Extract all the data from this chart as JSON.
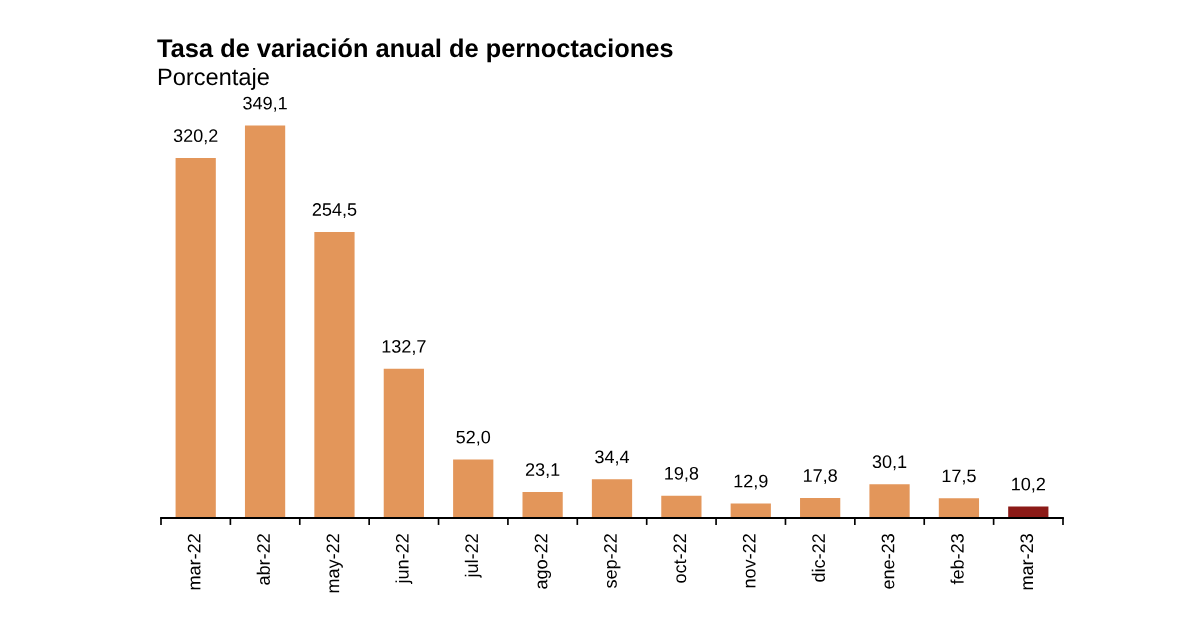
{
  "chart_data": {
    "type": "bar",
    "title": "Tasa de variación anual de pernoctaciones",
    "subtitle": "Porcentaje",
    "categories": [
      "mar-22",
      "abr-22",
      "may-22",
      "jun-22",
      "jul-22",
      "ago-22",
      "sep-22",
      "oct-22",
      "nov-22",
      "dic-22",
      "ene-23",
      "feb-23",
      "mar-23"
    ],
    "values": [
      320.2,
      349.1,
      254.5,
      132.7,
      52.0,
      23.1,
      34.4,
      19.8,
      12.9,
      17.8,
      30.1,
      17.5,
      10.2
    ],
    "value_labels": [
      "320,2",
      "349,1",
      "254,5",
      "132,7",
      "52,0",
      "23,1",
      "34,4",
      "19,8",
      "12,9",
      "17,8",
      "30,1",
      "17,5",
      "10,2"
    ],
    "colors": [
      "#e3965a",
      "#e3965a",
      "#e3965a",
      "#e3965a",
      "#e3965a",
      "#e3965a",
      "#e3965a",
      "#e3965a",
      "#e3965a",
      "#e3965a",
      "#e3965a",
      "#e3965a",
      "#8b1a17"
    ],
    "tick_labels": "x",
    "grid": false
  }
}
